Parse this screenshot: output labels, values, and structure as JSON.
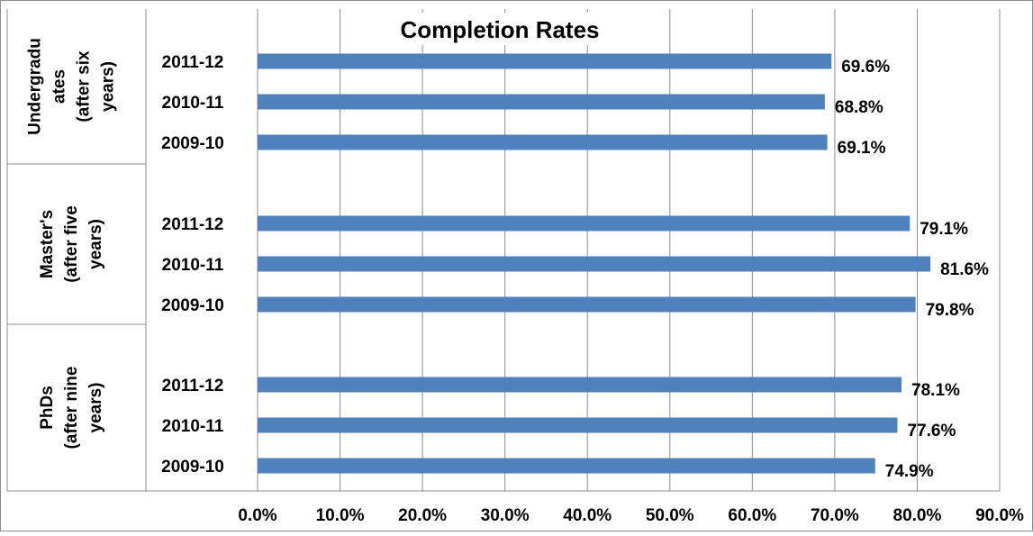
{
  "chart_data": {
    "type": "bar",
    "orientation": "horizontal",
    "title": "Completion Rates",
    "xlabel": "",
    "ylabel": "",
    "xlim": [
      0,
      90
    ],
    "x_ticks": [
      "0.0%",
      "10.0%",
      "20.0%",
      "30.0%",
      "40.0%",
      "50.0%",
      "60.0%",
      "70.0%",
      "80.0%",
      "90.0%"
    ],
    "grid": "vertical",
    "legend": "none",
    "bar_color": "#4f81bd",
    "groups": [
      {
        "label_lines": [
          "Undergradu",
          "ates",
          "(after six",
          "years)"
        ],
        "categories": [
          "2011-12",
          "2010-11",
          "2009-10"
        ],
        "values": [
          69.6,
          68.8,
          69.1
        ],
        "data_labels": [
          "69.6%",
          "68.8%",
          "69.1%"
        ]
      },
      {
        "label_lines": [
          "Master's",
          "(after five",
          "years)"
        ],
        "categories": [
          "2011-12",
          "2010-11",
          "2009-10"
        ],
        "values": [
          79.1,
          81.6,
          79.8
        ],
        "data_labels": [
          "79.1%",
          "81.6%",
          "79.8%"
        ]
      },
      {
        "label_lines": [
          "PhDs",
          "(after nine",
          "years)"
        ],
        "categories": [
          "2011-12",
          "2010-11",
          "2009-10"
        ],
        "values": [
          78.1,
          77.6,
          74.9
        ],
        "data_labels": [
          "78.1%",
          "77.6%",
          "74.9%"
        ]
      }
    ]
  }
}
